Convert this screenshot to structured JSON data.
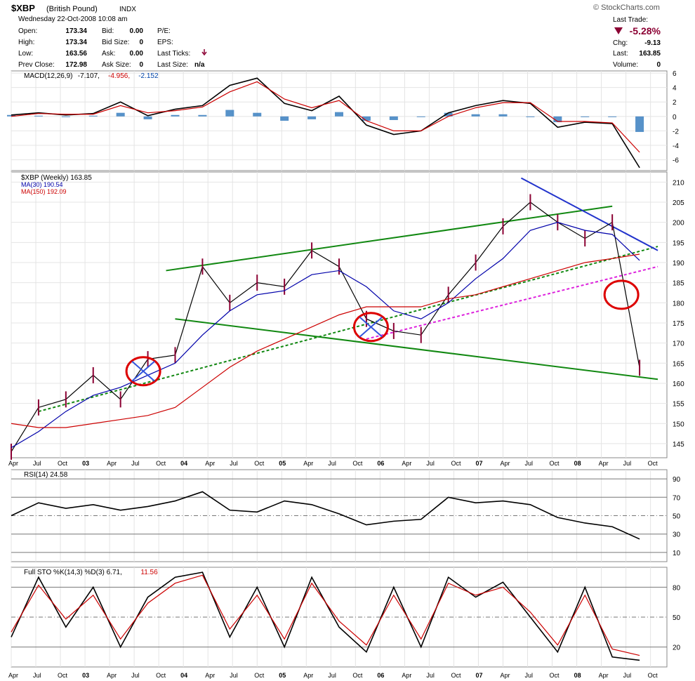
{
  "header": {
    "symbol": "$XBP",
    "name": "(British Pound)",
    "exchange": "INDX",
    "watermark": "© StockCharts.com",
    "datetime": "Wednesday  22-Oct-2008  10:08 am",
    "rows": [
      {
        "l1": "Open:",
        "v1": "173.34",
        "l2": "Bid:",
        "v2": "0.00",
        "l3": "P/E:",
        "v3": ""
      },
      {
        "l1": "High:",
        "v1": "173.34",
        "l2": "Bid Size:",
        "v2": "0",
        "l3": "EPS:",
        "v3": ""
      },
      {
        "l1": "Low:",
        "v1": "163.56",
        "l2": "Ask:",
        "v2": "0.00",
        "l3": "Last Ticks:",
        "v3": ""
      },
      {
        "l1": "Prev Close:",
        "v1": "172.98",
        "l2": "Ask Size:",
        "v2": "0",
        "l3": "Last Size:",
        "v3": "n/a"
      }
    ],
    "last_trade": {
      "label": "Last Trade:",
      "pct": "-5.28%",
      "chg_label": "Chg:",
      "chg": "-9.13",
      "last_label": "Last:",
      "last": "163.85",
      "vol_label": "Volume:",
      "vol": "0"
    },
    "colors": {
      "down": "#8b0033"
    }
  },
  "chart_data": [
    {
      "type": "line",
      "panel": "MACD",
      "legend": [
        "MACD(12,26,9)",
        "-7.107,",
        "-4.956,",
        "-2.152"
      ],
      "legend_colors": [
        "#000000",
        "#000000",
        "#cc0000",
        "#0044aa"
      ],
      "y_ticks": [
        6,
        4,
        2,
        0,
        -2,
        -4,
        -6
      ],
      "ylim": [
        -7.5,
        6.3
      ],
      "x": [
        0,
        3,
        6,
        9,
        12,
        15,
        18,
        21,
        24,
        27,
        30,
        33,
        36,
        39,
        42,
        45,
        48,
        51,
        54,
        57,
        60,
        63,
        66,
        69
      ],
      "series": [
        {
          "values": [
            0.2,
            0.5,
            0.2,
            0.4,
            2.0,
            0.1,
            1.0,
            1.5,
            4.3,
            5.3,
            1.8,
            0.8,
            2.8,
            -1.2,
            -2.5,
            -2.0,
            0.5,
            1.5,
            2.2,
            1.8,
            -1.5,
            -0.8,
            -1.0,
            -7.1
          ],
          "color": "#000000"
        },
        {
          "values": [
            0.0,
            0.4,
            0.3,
            0.3,
            1.5,
            0.5,
            0.8,
            1.3,
            3.4,
            4.8,
            2.4,
            1.2,
            2.2,
            -0.6,
            -2.0,
            -2.0,
            0.0,
            1.2,
            1.9,
            1.9,
            -0.7,
            -0.7,
            -0.9,
            -4.96
          ],
          "color": "#cc0000"
        }
      ],
      "histogram": [
        0.2,
        0.1,
        -0.1,
        0.1,
        0.5,
        -0.4,
        0.2,
        0.2,
        0.9,
        0.5,
        -0.6,
        -0.4,
        0.6,
        -0.6,
        -0.5,
        0.0,
        0.5,
        0.3,
        0.3,
        -0.1,
        -0.8,
        -0.1,
        -0.1,
        -2.15
      ],
      "histogram_color": "#3a7fc0"
    },
    {
      "type": "line",
      "panel": "Price",
      "legend": [
        "$XBP (Weekly) 163.85",
        "MA(30) 190.54",
        "MA(150) 192.09"
      ],
      "legend_colors": [
        "#000000",
        "#0000aa",
        "#cc0000"
      ],
      "y_ticks": [
        210,
        205,
        200,
        195,
        190,
        185,
        180,
        175,
        170,
        165,
        160,
        155,
        150,
        145
      ],
      "ylim": [
        141.5,
        212.5
      ],
      "x_tick_labels": [
        "Apr",
        "Jul",
        "Oct",
        "03",
        "Apr",
        "Jul",
        "Oct",
        "04",
        "Apr",
        "Jul",
        "Oct",
        "05",
        "Apr",
        "Jul",
        "Oct",
        "06",
        "Apr",
        "Jul",
        "Oct",
        "07",
        "Apr",
        "Jul",
        "Oct",
        "08",
        "Apr",
        "Jul",
        "Oct"
      ],
      "x": [
        0,
        3,
        6,
        9,
        12,
        15,
        18,
        21,
        24,
        27,
        30,
        33,
        36,
        39,
        42,
        45,
        48,
        51,
        54,
        57,
        60,
        63,
        66,
        69
      ],
      "series": [
        {
          "values": [
            143,
            154,
            156,
            162,
            156,
            166,
            167,
            189,
            180,
            185,
            184,
            193,
            189,
            176,
            173,
            172,
            182,
            190,
            199,
            205,
            200,
            196,
            200,
            163.85
          ],
          "color": "#000000",
          "style": "ohlc-close"
        },
        {
          "values": [
            144,
            148,
            153,
            157,
            159,
            162,
            165,
            172,
            178,
            182,
            183,
            187,
            188,
            184,
            178,
            176,
            180,
            186,
            191,
            198,
            200,
            198,
            197,
            190.54
          ],
          "color": "#0000aa"
        },
        {
          "values": [
            150,
            149,
            149,
            150,
            151,
            152,
            154,
            159,
            164,
            168,
            171,
            174,
            177,
            179,
            179,
            179,
            181,
            182,
            184,
            186,
            188,
            190,
            191,
            192.09
          ],
          "color": "#cc0000"
        }
      ],
      "trendlines": [
        {
          "from": [
            17,
            188
          ],
          "to": [
            66,
            204
          ],
          "color": "#118811",
          "style": "solid"
        },
        {
          "from": [
            18,
            176
          ],
          "to": [
            71,
            161
          ],
          "color": "#118811",
          "style": "solid"
        },
        {
          "from": [
            3,
            153
          ],
          "to": [
            71,
            194
          ],
          "color": "#118811",
          "style": "dashed"
        },
        {
          "from": [
            39,
            171
          ],
          "to": [
            71,
            189
          ],
          "color": "#dd22dd",
          "style": "dashed"
        },
        {
          "from": [
            56,
            211
          ],
          "to": [
            71,
            193
          ],
          "color": "#2233cc",
          "style": "solid"
        }
      ],
      "circles": [
        {
          "at": [
            14.5,
            163
          ],
          "color": "#dd0000",
          "cross": true
        },
        {
          "at": [
            39.5,
            174
          ],
          "color": "#dd0000",
          "cross": true
        },
        {
          "at": [
            67,
            182
          ],
          "color": "#dd0000",
          "cross": false
        }
      ]
    },
    {
      "type": "line",
      "panel": "RSI",
      "legend": [
        "RSI(14) 24.58"
      ],
      "legend_colors": [
        "#000000"
      ],
      "y_ticks": [
        90,
        70,
        50,
        30,
        10
      ],
      "ylim": [
        0,
        100
      ],
      "x": [
        0,
        3,
        6,
        9,
        12,
        15,
        18,
        21,
        24,
        27,
        30,
        33,
        36,
        39,
        42,
        45,
        48,
        51,
        54,
        57,
        60,
        63,
        66,
        69
      ],
      "series": [
        {
          "values": [
            50,
            64,
            58,
            62,
            56,
            60,
            66,
            76,
            56,
            54,
            66,
            62,
            52,
            40,
            44,
            46,
            70,
            64,
            66,
            62,
            48,
            42,
            38,
            24.58
          ],
          "color": "#000000"
        }
      ]
    },
    {
      "type": "line",
      "panel": "STO",
      "legend": [
        "Full STO %K(14,3) %D(3) 6.71,",
        "11.56"
      ],
      "legend_colors": [
        "#000000",
        "#cc0000"
      ],
      "y_ticks": [
        80,
        50,
        20
      ],
      "ylim": [
        0,
        100
      ],
      "x": [
        0,
        3,
        6,
        9,
        12,
        15,
        18,
        21,
        24,
        27,
        30,
        33,
        36,
        39,
        42,
        45,
        48,
        51,
        54,
        57,
        60,
        63,
        66,
        69
      ],
      "series": [
        {
          "values": [
            30,
            90,
            40,
            80,
            20,
            70,
            90,
            95,
            30,
            80,
            20,
            90,
            40,
            15,
            80,
            20,
            90,
            70,
            85,
            50,
            15,
            80,
            10,
            6.71
          ],
          "color": "#000000"
        },
        {
          "values": [
            35,
            82,
            48,
            72,
            28,
            64,
            84,
            92,
            38,
            72,
            28,
            84,
            46,
            22,
            72,
            28,
            84,
            72,
            80,
            55,
            22,
            72,
            18,
            11.56
          ],
          "color": "#cc0000"
        }
      ]
    }
  ]
}
